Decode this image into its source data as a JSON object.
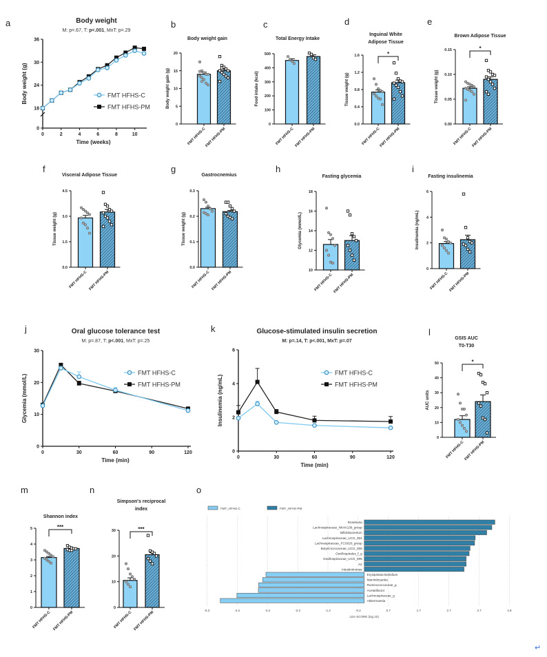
{
  "colors": {
    "control": "#8fd3f7",
    "pm": "#5aa0c8",
    "pm_hatch": "#1f5a80",
    "lda_c": "#87cef5",
    "lda_pm": "#2f7fa6",
    "axis": "#111111"
  },
  "groups": [
    "FMT HFHS-C",
    "FMT HFHS-PM"
  ],
  "return_glyph": "↵",
  "chart_data": [
    {
      "panel": "a",
      "type": "line",
      "title": "Body weight",
      "subtitle": [
        "M: p=.67, T: ",
        "p<.001",
        ", MxT: p=.29"
      ],
      "xlabel": "Time (weeks)",
      "ylabel": "Body weight (g)",
      "xticks": [
        0,
        2,
        4,
        6,
        8,
        10
      ],
      "yticks": [
        0,
        18,
        24,
        30,
        36
      ],
      "ylim": [
        0,
        36
      ],
      "axis_break": [
        0,
        18
      ],
      "series": [
        {
          "name": "FMT HFHS-C",
          "marker": "circle",
          "x": [
            0,
            1,
            2,
            3,
            4,
            5,
            6,
            7,
            8,
            9,
            10,
            11
          ],
          "y": [
            18,
            20,
            22,
            22.8,
            24.5,
            25.8,
            28,
            28.5,
            30.5,
            31.8,
            33,
            32.3
          ]
        },
        {
          "name": "FMT HFHS-PM",
          "marker": "square",
          "x": [
            0,
            1,
            2,
            3,
            4,
            5,
            6,
            7,
            8,
            9,
            10,
            11
          ],
          "y": [
            18,
            20,
            22,
            22.8,
            24.8,
            26.3,
            28.2,
            29.2,
            31.2,
            32.5,
            33.8,
            33.5
          ]
        }
      ]
    },
    {
      "panel": "b",
      "type": "bar",
      "title": [
        "Body weight gain"
      ],
      "ylabel": "Body weight gain (g)",
      "ylim": [
        0,
        20
      ],
      "yticks": [
        0,
        5,
        10,
        15,
        20
      ],
      "ytick_labels": [
        "0",
        "5",
        "10",
        "15",
        "20"
      ],
      "bars": [
        {
          "mean": 14,
          "sem": 0.6,
          "points": [
            17.5,
            15,
            14.5,
            14,
            14,
            13.5,
            13,
            12.5,
            11.5,
            11,
            14.8,
            12
          ]
        },
        {
          "mean": 15,
          "sem": 0.5,
          "points": [
            19,
            16.5,
            16,
            15.5,
            15,
            15,
            14.5,
            14,
            13.5,
            13,
            12,
            15.8
          ]
        }
      ]
    },
    {
      "panel": "c",
      "type": "bar",
      "title": [
        "Total Energy Intake"
      ],
      "ylabel": "Food intake (kcal)",
      "ylim": [
        0,
        500
      ],
      "yticks": [
        0,
        100,
        200,
        300,
        400,
        500
      ],
      "ytick_labels": [
        "0",
        "100",
        "200",
        "300",
        "400",
        "500"
      ],
      "bars": [
        {
          "mean": 452,
          "sem": 12,
          "points": [
            480,
            460,
            445,
            430
          ]
        },
        {
          "mean": 480,
          "sem": 12,
          "points": [
            505,
            495,
            470,
            460
          ]
        }
      ]
    },
    {
      "panel": "d",
      "type": "bar",
      "title": [
        "Inguinal White",
        "Adipose Tissue"
      ],
      "ylabel": "Tissue weight (g)",
      "ylim": [
        0,
        1.6
      ],
      "yticks": [
        0,
        0.4,
        0.8,
        1.2,
        1.6
      ],
      "ytick_labels": [
        "0.0",
        "0.4",
        "0.8",
        "1.2",
        "1.6"
      ],
      "significance": "*",
      "bars": [
        {
          "mean": 0.74,
          "sem": 0.05,
          "points": [
            1.05,
            0.92,
            0.82,
            0.78,
            0.75,
            0.7,
            0.65,
            0.6,
            0.58,
            0.45
          ]
        },
        {
          "mean": 0.96,
          "sem": 0.06,
          "points": [
            1.42,
            1.18,
            1.05,
            1.0,
            0.98,
            0.95,
            0.9,
            0.85,
            0.75,
            0.65,
            0.58
          ]
        }
      ]
    },
    {
      "panel": "e",
      "type": "bar",
      "title": [
        "Brown Adipose Tissue"
      ],
      "ylabel": "Tissue weight (g)",
      "ylim": [
        0,
        0.15
      ],
      "yticks": [
        0,
        0.05,
        0.1,
        0.15
      ],
      "ytick_labels": [
        "0.00",
        "0.05",
        "0.10",
        "0.15"
      ],
      "significance": "*",
      "bars": [
        {
          "mean": 0.072,
          "sem": 0.003,
          "points": [
            0.085,
            0.082,
            0.08,
            0.078,
            0.075,
            0.072,
            0.07,
            0.068,
            0.065,
            0.06,
            0.048
          ]
        },
        {
          "mean": 0.09,
          "sem": 0.005,
          "points": [
            0.128,
            0.108,
            0.105,
            0.1,
            0.098,
            0.095,
            0.09,
            0.085,
            0.08,
            0.072,
            0.065,
            0.06
          ]
        }
      ]
    },
    {
      "panel": "f",
      "type": "bar",
      "title": [
        "Visceral Adipose Tissue"
      ],
      "ylabel": "Tissue weight (g)",
      "ylim": [
        0,
        4.5
      ],
      "yticks": [
        0,
        1.5,
        3,
        4.5
      ],
      "ytick_labels": [
        "0.0",
        "1.5",
        "3.0",
        "4.5"
      ],
      "bars": [
        {
          "mean": 2.9,
          "sem": 0.15,
          "points": [
            3.5,
            3.4,
            3.3,
            3.2,
            3.1,
            2.9,
            2.6,
            2.5,
            2.3,
            2.0
          ]
        },
        {
          "mean": 3.25,
          "sem": 0.15,
          "points": [
            4.4,
            3.7,
            3.6,
            3.4,
            3.3,
            3.2,
            3.0,
            2.9,
            2.7,
            2.5,
            2.4
          ]
        }
      ]
    },
    {
      "panel": "g",
      "type": "bar",
      "title": [
        "Gastrocnemius"
      ],
      "ylabel": "Tissue weight (g)",
      "ylim": [
        0,
        0.3
      ],
      "yticks": [
        0,
        0.1,
        0.2,
        0.3
      ],
      "ytick_labels": [
        "0.0",
        "0.1",
        "0.2",
        "0.3"
      ],
      "bars": [
        {
          "mean": 0.23,
          "sem": 0.005,
          "points": [
            0.265,
            0.255,
            0.24,
            0.23,
            0.22,
            0.215,
            0.21,
            0.205
          ]
        },
        {
          "mean": 0.218,
          "sem": 0.005,
          "points": [
            0.255,
            0.255,
            0.24,
            0.23,
            0.22,
            0.21,
            0.2,
            0.195,
            0.19
          ]
        }
      ]
    },
    {
      "panel": "h",
      "type": "bar",
      "title": [
        "Fasting glycemia"
      ],
      "ylabel": "Glycemia (mmol/L)",
      "ylim": [
        10,
        18
      ],
      "yticks": [
        10,
        12,
        14,
        16,
        18
      ],
      "ytick_labels": [
        "10",
        "12",
        "14",
        "16",
        "18"
      ],
      "bars": [
        {
          "mean": 12.6,
          "sem": 0.5,
          "points": [
            16.3,
            13.8,
            13.6,
            13.2,
            12.5,
            12.0,
            11.5,
            10.8,
            10.7
          ]
        },
        {
          "mean": 13.0,
          "sem": 0.5,
          "points": [
            16.0,
            15.6,
            13.7,
            13.4,
            13.0,
            12.5,
            12.0,
            11.5,
            11.0
          ]
        }
      ]
    },
    {
      "panel": "i",
      "type": "bar",
      "title": [
        "Fasting insulinemia"
      ],
      "ylabel": "Insulinemia (ng/mL)",
      "ylim": [
        0,
        6
      ],
      "yticks": [
        0,
        2,
        4,
        6
      ],
      "ytick_labels": [
        "0",
        "2",
        "4",
        "6"
      ],
      "bars": [
        {
          "mean": 1.95,
          "sem": 0.15,
          "points": [
            3.0,
            2.4,
            2.3,
            2.1,
            2.0,
            1.8,
            1.6,
            1.4,
            1.2
          ]
        },
        {
          "mean": 2.25,
          "sem": 0.35,
          "points": [
            5.8,
            3.2,
            2.4,
            2.1,
            2.0,
            1.9,
            1.8,
            1.5,
            1.3
          ]
        }
      ]
    },
    {
      "panel": "j",
      "type": "line",
      "title": "Oral glucose tolerance test",
      "subtitle": [
        "M: p=.87, T: ",
        "p<.001",
        ", MxT: p=.25"
      ],
      "xlabel": "Time (min)",
      "ylabel": "Glycemia (mmol/L)",
      "xticks": [
        0,
        30,
        60,
        90,
        120
      ],
      "yticks": [
        0,
        10,
        20,
        30
      ],
      "ylim": [
        0,
        30
      ],
      "xlim": [
        0,
        120
      ],
      "series": [
        {
          "name": "FMT HFHS-C",
          "marker": "circle",
          "x": [
            0,
            15,
            30,
            60,
            120
          ],
          "y": [
            12.7,
            24.5,
            21.8,
            17.6,
            11.2
          ],
          "err": [
            0.4,
            0.5,
            1.5,
            0.8,
            0.4
          ]
        },
        {
          "name": "FMT HFHS-PM",
          "marker": "square",
          "x": [
            0,
            15,
            30,
            60,
            120
          ],
          "y": [
            13,
            25.5,
            19.7,
            17.3,
            11.8
          ],
          "err": [
            0.4,
            0.5,
            0.7,
            0.4,
            0.3
          ]
        }
      ]
    },
    {
      "panel": "k",
      "type": "line",
      "title": "Glucose-stimulated insulin secretion",
      "subtitle": [
        "M: p=.14, T: p<.001, MxT: p=.07",
        "",
        ""
      ],
      "xlabel": "Time (min)",
      "ylabel": "Insulinemia (ng/mL)",
      "xticks": [
        0,
        30,
        60,
        90,
        120
      ],
      "yticks": [
        0,
        2,
        4,
        6
      ],
      "ylim": [
        0,
        6
      ],
      "xlim": [
        0,
        120
      ],
      "series": [
        {
          "name": "FMT HFHS-C",
          "marker": "circle",
          "x": [
            0,
            15,
            30,
            60,
            120
          ],
          "y": [
            1.95,
            2.8,
            1.7,
            1.52,
            1.38
          ],
          "err": [
            0.08,
            0.15,
            0.08,
            0.06,
            0.06
          ]
        },
        {
          "name": "FMT HFHS-PM",
          "marker": "square",
          "x": [
            0,
            15,
            30,
            60,
            120
          ],
          "y": [
            2.3,
            4.1,
            2.32,
            1.82,
            1.75
          ],
          "err": [
            0.4,
            0.8,
            0.15,
            0.25,
            0.3
          ]
        }
      ]
    },
    {
      "panel": "l",
      "type": "bar",
      "title": [
        "GSIS AUC",
        "T0-T30"
      ],
      "ylabel": "AUC units",
      "ylim": [
        0,
        50
      ],
      "yticks": [
        0,
        10,
        20,
        30,
        40,
        50
      ],
      "ytick_labels": [
        "0",
        "10",
        "20",
        "30",
        "40",
        "50"
      ],
      "significance": "*",
      "bars": [
        {
          "mean": 12,
          "sem": 2.5,
          "points": [
            29,
            23,
            19,
            19,
            15,
            12,
            10,
            8,
            6,
            4
          ]
        },
        {
          "mean": 24,
          "sem": 4.5,
          "points": [
            43,
            42,
            37,
            36,
            30,
            23,
            21,
            13,
            12,
            3
          ]
        }
      ]
    },
    {
      "panel": "m",
      "type": "bar",
      "title": [
        "Shannon index"
      ],
      "ylabel": "",
      "ylim": [
        0,
        5
      ],
      "yticks": [
        0,
        1,
        2,
        3,
        4,
        5
      ],
      "ytick_labels": [
        "0",
        "1",
        "2",
        "3",
        "4",
        "5"
      ],
      "significance": "***",
      "bars": [
        {
          "mean": 3.15,
          "sem": 0.07,
          "points": [
            3.6,
            3.5,
            3.4,
            3.3,
            3.2,
            3.1,
            3.0,
            2.9,
            2.8
          ]
        },
        {
          "mean": 3.72,
          "sem": 0.03,
          "points": [
            3.9,
            3.8,
            3.75,
            3.7,
            3.7,
            3.65,
            3.6,
            3.6
          ]
        }
      ]
    },
    {
      "panel": "n",
      "type": "bar",
      "title": [
        "Simpson's reciprocal",
        "index"
      ],
      "ylabel": "",
      "ylim": [
        0,
        30
      ],
      "yticks": [
        0,
        10,
        20,
        30
      ],
      "ytick_labels": [
        "0",
        "10",
        "20",
        "30"
      ],
      "significance": "***",
      "bars": [
        {
          "mean": 10.5,
          "sem": 1,
          "points": [
            17,
            15,
            13,
            12,
            11,
            10,
            9,
            8
          ]
        },
        {
          "mean": 20.5,
          "sem": 0.8,
          "points": [
            28,
            22,
            21.5,
            21,
            20,
            19,
            18,
            17
          ]
        }
      ]
    },
    {
      "panel": "o",
      "type": "bar",
      "orientation": "horizontal",
      "xlabel": "LDA SCORE (log 10)",
      "legend": [
        "FMT_HFHS-C",
        "FMT_HFHS-PM"
      ],
      "xtick_labels": [
        "-5.3",
        "-4.2",
        "-3.2",
        "-2.2",
        "-1.2",
        "-0.2",
        "0.7",
        "1.7",
        "2.7",
        "3.7",
        "4.8"
      ],
      "categories": [
        "Roseburia",
        "Lachnospiraceae_NK4A136_group",
        "Bifidobacterium",
        "Lachnospiraceae_UCG_004",
        "Lachnospiraceae_FCS020_group",
        "Butyricicoccaceae_UCG_009",
        "Oscillospirales_f_g",
        "Oscillospiraceae_UCG_005",
        "A2",
        "Intestinimonas",
        "Erysipelatoclostridium",
        "Marvinbryantia",
        "Ruminococcaceae_g",
        "Acetatifactor",
        "Lachnospiraceae_g",
        "Akkermansia"
      ],
      "values": [
        4.32,
        4.22,
        4.05,
        3.67,
        3.65,
        3.5,
        3.47,
        3.37,
        3.37,
        3.3,
        -3.25,
        -3.36,
        -3.49,
        -3.5,
        -4.21,
        -4.76
      ]
    }
  ]
}
